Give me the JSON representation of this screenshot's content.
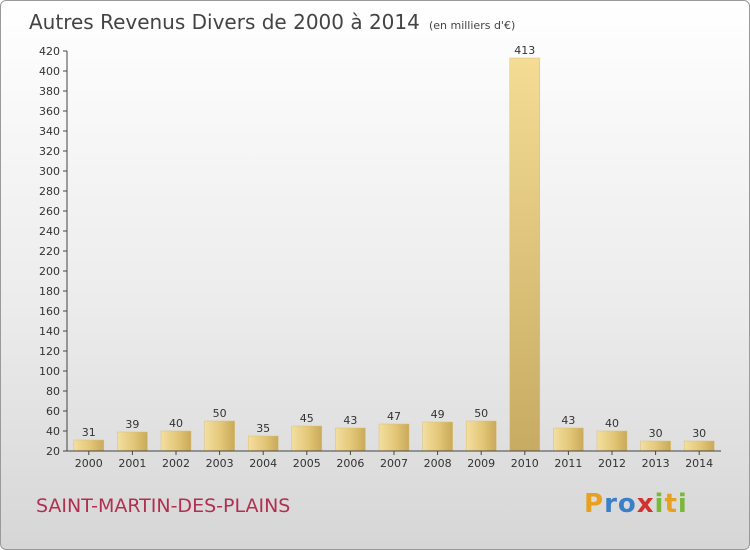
{
  "chart_data": {
    "type": "bar",
    "title": "Autres Revenus Divers de 2000 à 2014",
    "subtitle": "(en milliers d'€)",
    "categories": [
      "2000",
      "2001",
      "2002",
      "2003",
      "2004",
      "2005",
      "2006",
      "2007",
      "2008",
      "2009",
      "2010",
      "2011",
      "2012",
      "2013",
      "2014"
    ],
    "values": [
      31,
      39,
      40,
      50,
      35,
      45,
      43,
      47,
      49,
      50,
      413,
      43,
      40,
      30,
      30
    ],
    "ylim": [
      20,
      420
    ],
    "yticks": [
      20,
      40,
      60,
      80,
      100,
      120,
      140,
      160,
      180,
      200,
      220,
      240,
      260,
      280,
      300,
      320,
      340,
      360,
      380,
      400,
      420
    ],
    "grid": false,
    "data_labels": true,
    "bar_color": "#e3c677"
  },
  "footer": {
    "commune": "SAINT-MARTIN-DES-PLAINS",
    "logo_letters": [
      "P",
      "r",
      "o",
      "x",
      "i",
      "t",
      "i"
    ],
    "logo_colors": [
      "#e8a020",
      "#3a7fc8",
      "#3a7fc8",
      "#d43030",
      "#7ab83a",
      "#e8a020",
      "#7ab83a"
    ]
  }
}
